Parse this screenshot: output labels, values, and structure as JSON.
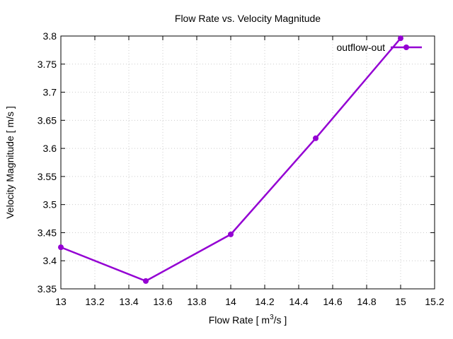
{
  "chart_data": {
    "type": "line",
    "title": "Flow Rate vs. Velocity Magnitude",
    "xlabel_main": "Flow Rate [ m",
    "xlabel_sup": "3",
    "xlabel_tail": "/s ]",
    "ylabel": "Velocity Magnitude [ m/s ]",
    "xlim": [
      13,
      15.2
    ],
    "ylim": [
      3.35,
      3.8
    ],
    "xticks": [
      "13",
      "13.2",
      "13.4",
      "13.6",
      "13.8",
      "14",
      "14.2",
      "14.4",
      "14.6",
      "14.8",
      "15",
      "15.2"
    ],
    "yticks": [
      "3.35",
      "3.4",
      "3.45",
      "3.5",
      "3.55",
      "3.6",
      "3.65",
      "3.7",
      "3.75",
      "3.8"
    ],
    "grid": true,
    "legend_position": "top-right",
    "series": [
      {
        "name": "outflow-out",
        "color": "#9400D3",
        "x": [
          13,
          13.5,
          14,
          14.5,
          15
        ],
        "y": [
          3.424,
          3.364,
          3.447,
          3.618,
          3.796
        ]
      }
    ]
  }
}
